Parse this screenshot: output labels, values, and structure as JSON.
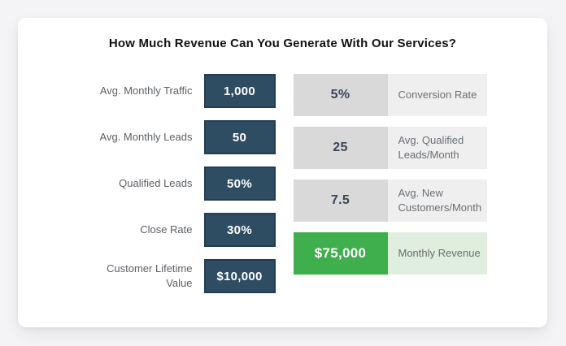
{
  "title": "How Much Revenue Can You Generate With Our Services?",
  "colors": {
    "page-bg": "#f4f4f6",
    "card-bg": "#ffffff",
    "navy": "#2e4d63",
    "navy-border": "#223f52",
    "gray-value-bg": "#d9d9d9",
    "gray-label-bg": "#efefef",
    "green": "#3fae4c",
    "green-light": "#dfeede",
    "value-text": "#3b4659",
    "label-text": "#5d6166",
    "output-label-text": "#6b6f75",
    "title-text": "#121212"
  },
  "calculator": {
    "inputs": [
      {
        "label": "Avg. Monthly Traffic",
        "value": "1,000"
      },
      {
        "label": "Avg. Monthly Leads",
        "value": "50"
      },
      {
        "label": "Qualified Leads",
        "value": "50%"
      },
      {
        "label": "Close Rate",
        "value": "30%"
      },
      {
        "label": "Customer Lifetime Value",
        "value": "$10,000"
      }
    ],
    "outputs": [
      {
        "value": "5%",
        "label": "Conversion Rate",
        "highlight": false
      },
      {
        "value": "25",
        "label": "Avg. Qualified Leads/Month",
        "highlight": false
      },
      {
        "value": "7.5",
        "label": "Avg. New Customers/Month",
        "highlight": false
      },
      {
        "value": "$75,000",
        "label": "Monthly Revenue",
        "highlight": true
      }
    ]
  }
}
